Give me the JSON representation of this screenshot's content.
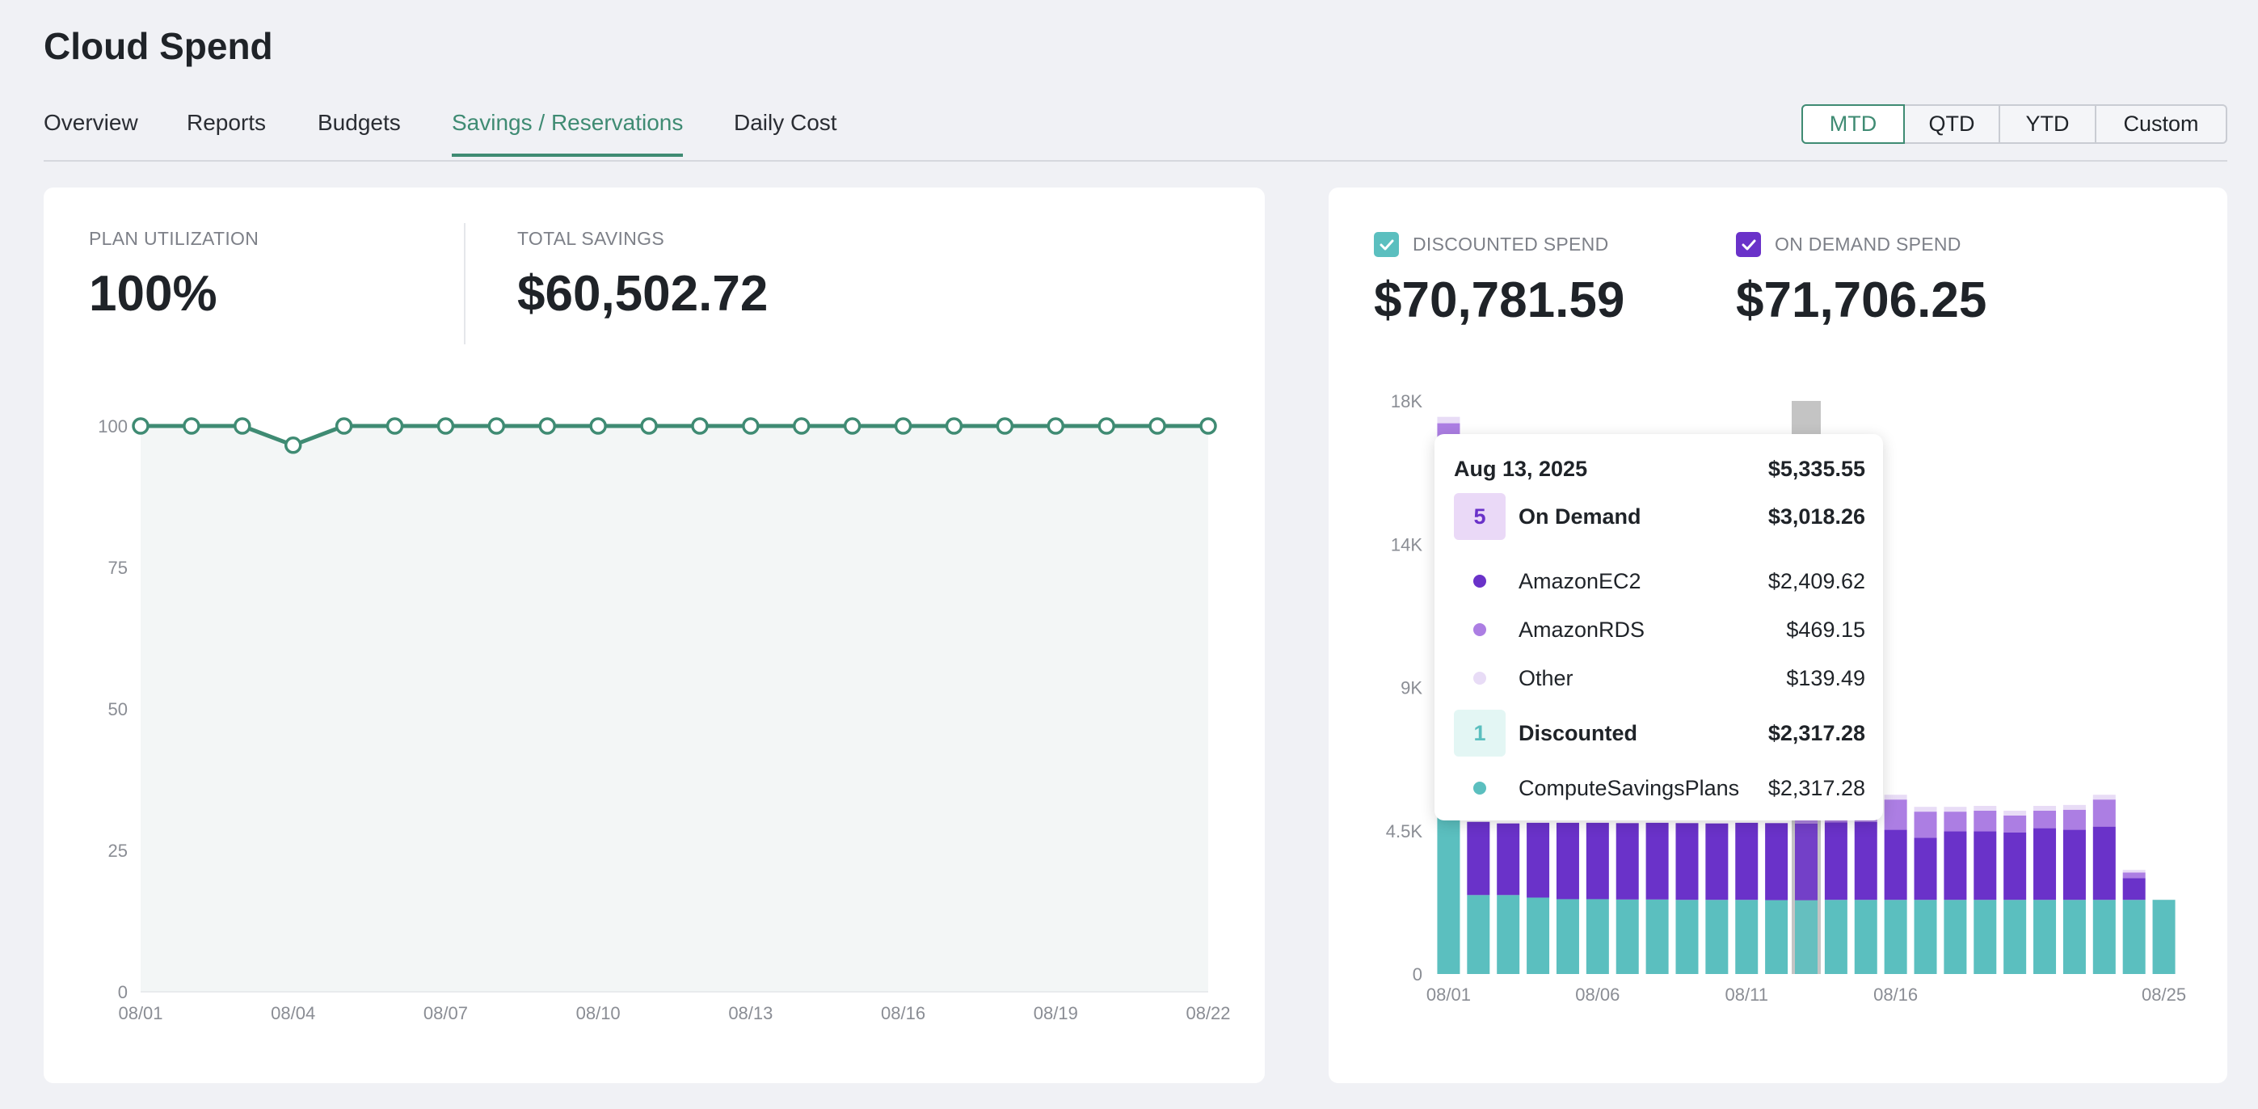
{
  "app": {
    "title": "Cloud Spend"
  },
  "tabs": [
    {
      "label": "Overview",
      "active": false
    },
    {
      "label": "Reports",
      "active": false
    },
    {
      "label": "Budgets",
      "active": false
    },
    {
      "label": "Savings / Reservations",
      "active": true
    },
    {
      "label": "Daily Cost",
      "active": false
    }
  ],
  "period": {
    "options": [
      "MTD",
      "QTD",
      "YTD",
      "Custom"
    ],
    "selected": "MTD"
  },
  "colors": {
    "accent": "#3f8b73",
    "discounted": "#5bbfbf",
    "ec2": "#6a32c9",
    "rds": "#ac7ee3",
    "other": "#e8dcf6",
    "highlight": "#c4c4c4"
  },
  "left_card": {
    "utilization_label": "PLAN UTILIZATION",
    "utilization_value": "100%",
    "savings_label": "TOTAL SAVINGS",
    "savings_value": "$60,502.72"
  },
  "right_card": {
    "discounted_label": "DISCOUNTED SPEND",
    "discounted_value": "$70,781.59",
    "discounted_checked": true,
    "ondemand_label": "ON DEMAND SPEND",
    "ondemand_value": "$71,706.25",
    "ondemand_checked": true
  },
  "tooltip": {
    "date": "Aug 13, 2025",
    "total": "$5,335.55",
    "ondemand": {
      "count": "5",
      "label": "On Demand",
      "value": "$3,018.26"
    },
    "items_ondemand": [
      {
        "name": "AmazonEC2",
        "value": "$2,409.62",
        "color": "#6a32c9"
      },
      {
        "name": "AmazonRDS",
        "value": "$469.15",
        "color": "#ac7ee3"
      },
      {
        "name": "Other",
        "value": "$139.49",
        "color": "#e8dcf6"
      }
    ],
    "discounted": {
      "count": "1",
      "label": "Discounted",
      "value": "$2,317.28"
    },
    "items_discounted": [
      {
        "name": "ComputeSavingsPlans",
        "value": "$2,317.28",
        "color": "#5bbfbf"
      }
    ]
  },
  "chart_data": [
    {
      "type": "line",
      "title": "",
      "x": [
        "08/01",
        "08/02",
        "08/03",
        "08/04",
        "08/05",
        "08/06",
        "08/07",
        "08/08",
        "08/09",
        "08/10",
        "08/11",
        "08/12",
        "08/13",
        "08/14",
        "08/15",
        "08/16",
        "08/17",
        "08/18",
        "08/19",
        "08/20",
        "08/21",
        "08/22"
      ],
      "xticks": [
        "08/01",
        "08/04",
        "08/07",
        "08/10",
        "08/13",
        "08/16",
        "08/19",
        "08/22"
      ],
      "series": [
        {
          "values": [
            100,
            100,
            100,
            96.6,
            100,
            100,
            100,
            100,
            100,
            100,
            100,
            100,
            100,
            100,
            100,
            100,
            100,
            100,
            100,
            100,
            100,
            100
          ]
        }
      ],
      "ylim": [
        0,
        100
      ],
      "yticks": [
        0,
        25,
        50,
        75,
        100
      ],
      "area_fill": true
    },
    {
      "type": "bar",
      "stacked": true,
      "title": "",
      "x": [
        "08/01",
        "08/02",
        "08/03",
        "08/04",
        "08/05",
        "08/06",
        "08/07",
        "08/08",
        "08/09",
        "08/10",
        "08/11",
        "08/12",
        "08/13",
        "08/14",
        "08/15",
        "08/16",
        "08/17",
        "08/18",
        "08/19",
        "08/20",
        "08/21",
        "08/22",
        "08/23",
        "08/24",
        "08/25"
      ],
      "xticks": [
        "08/01",
        "08/06",
        "08/11",
        "08/16",
        "08/25"
      ],
      "ytick_labels": [
        "0",
        "4.5K",
        "9K",
        "14K",
        "18K"
      ],
      "ylim": [
        0,
        18000
      ],
      "highlight_x": "08/13",
      "series": [
        {
          "name": "ComputeSavingsPlans",
          "values": [
            5000,
            2480,
            2480,
            2400,
            2350,
            2350,
            2340,
            2340,
            2330,
            2330,
            2330,
            2320,
            2317,
            2330,
            2330,
            2330,
            2330,
            2330,
            2330,
            2330,
            2330,
            2330,
            2330,
            2330,
            2330
          ]
        },
        {
          "name": "AmazonEC2",
          "values": [
            11800,
            2300,
            2250,
            2350,
            2400,
            2400,
            2400,
            2410,
            2410,
            2400,
            2420,
            2420,
            2410,
            2430,
            2450,
            2200,
            1950,
            2150,
            2150,
            2120,
            2250,
            2200,
            2300,
            680,
            0
          ]
        },
        {
          "name": "AmazonRDS",
          "values": [
            500,
            0,
            0,
            0,
            0,
            0,
            0,
            0,
            0,
            0,
            0,
            0,
            469,
            150,
            90,
            950,
            820,
            620,
            650,
            530,
            550,
            630,
            850,
            180,
            0
          ]
        },
        {
          "name": "Other",
          "values": [
            200,
            0,
            0,
            0,
            0,
            0,
            0,
            0,
            0,
            0,
            0,
            0,
            139,
            90,
            90,
            150,
            150,
            150,
            150,
            150,
            150,
            150,
            150,
            80,
            0
          ]
        }
      ]
    }
  ]
}
